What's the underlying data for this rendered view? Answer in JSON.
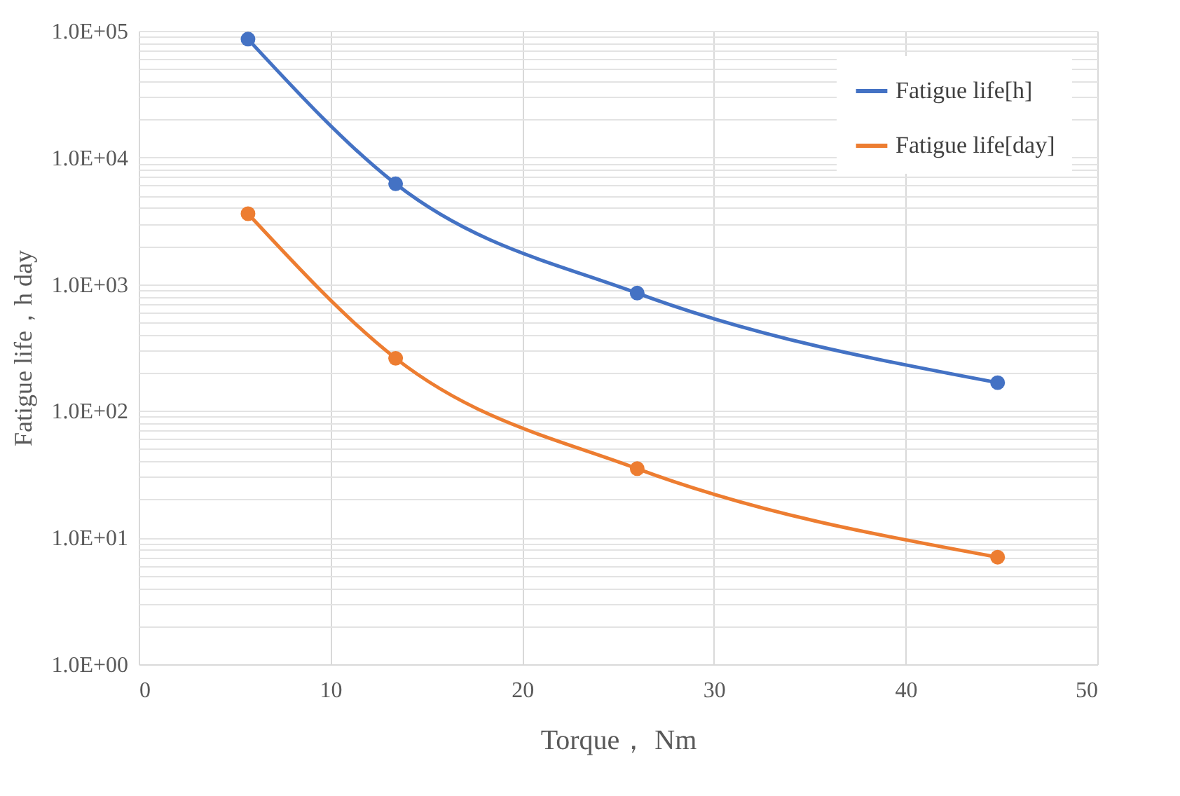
{
  "chart_data": {
    "type": "line",
    "xlabel": "Torque， Nm",
    "ylabel": "Fatigue life，h day",
    "x": [
      5.7,
      13.4,
      26,
      44.8
    ],
    "series": [
      {
        "name": "Fatigue life[h]",
        "color": "#4472c4",
        "values": [
          86000,
          6200,
          850,
          167
        ]
      },
      {
        "name": "Fatigue life[day]",
        "color": "#ed7d31",
        "values": [
          3600,
          260,
          35,
          7
        ]
      }
    ],
    "log": "y",
    "xlim": [
      0,
      50
    ],
    "xticks": [
      0,
      10,
      20,
      30,
      40,
      50
    ],
    "ylim": [
      1,
      100000
    ],
    "yticks": [
      {
        "value": 1,
        "label": "1.0E+00"
      },
      {
        "value": 2,
        "label": null
      },
      {
        "value": 3,
        "label": null
      },
      {
        "value": 4,
        "label": null
      },
      {
        "value": 5,
        "label": null
      },
      {
        "value": 6,
        "label": null
      },
      {
        "value": 7,
        "label": null
      },
      {
        "value": 8,
        "label": null
      },
      {
        "value": 9,
        "label": null
      },
      {
        "value": 10,
        "label": "1.0E+01"
      },
      {
        "value": 20,
        "label": null
      },
      {
        "value": 30,
        "label": null
      },
      {
        "value": 40,
        "label": null
      },
      {
        "value": 50,
        "label": null
      },
      {
        "value": 60,
        "label": null
      },
      {
        "value": 70,
        "label": null
      },
      {
        "value": 80,
        "label": null
      },
      {
        "value": 90,
        "label": null
      },
      {
        "value": 100,
        "label": "1.0E+02"
      },
      {
        "value": 200,
        "label": null
      },
      {
        "value": 300,
        "label": null
      },
      {
        "value": 400,
        "label": null
      },
      {
        "value": 500,
        "label": null
      },
      {
        "value": 600,
        "label": null
      },
      {
        "value": 700,
        "label": null
      },
      {
        "value": 800,
        "label": null
      },
      {
        "value": 900,
        "label": null
      },
      {
        "value": 1000,
        "label": "1.0E+03"
      },
      {
        "value": 2000,
        "label": null
      },
      {
        "value": 3000,
        "label": null
      },
      {
        "value": 4000,
        "label": null
      },
      {
        "value": 5000,
        "label": null
      },
      {
        "value": 6000,
        "label": null
      },
      {
        "value": 7000,
        "label": null
      },
      {
        "value": 8000,
        "label": null
      },
      {
        "value": 9000,
        "label": null
      },
      {
        "value": 10000,
        "label": "1.0E+04"
      },
      {
        "value": 20000,
        "label": null
      },
      {
        "value": 30000,
        "label": null
      },
      {
        "value": 40000,
        "label": null
      },
      {
        "value": 50000,
        "label": null
      },
      {
        "value": 60000,
        "label": null
      },
      {
        "value": 70000,
        "label": null
      },
      {
        "value": 80000,
        "label": null
      },
      {
        "value": 90000,
        "label": null
      },
      {
        "value": 100000,
        "label": "1.0E+05"
      }
    ],
    "grid": true,
    "legend": "top right",
    "marker": "circle",
    "line_style": "solid"
  }
}
